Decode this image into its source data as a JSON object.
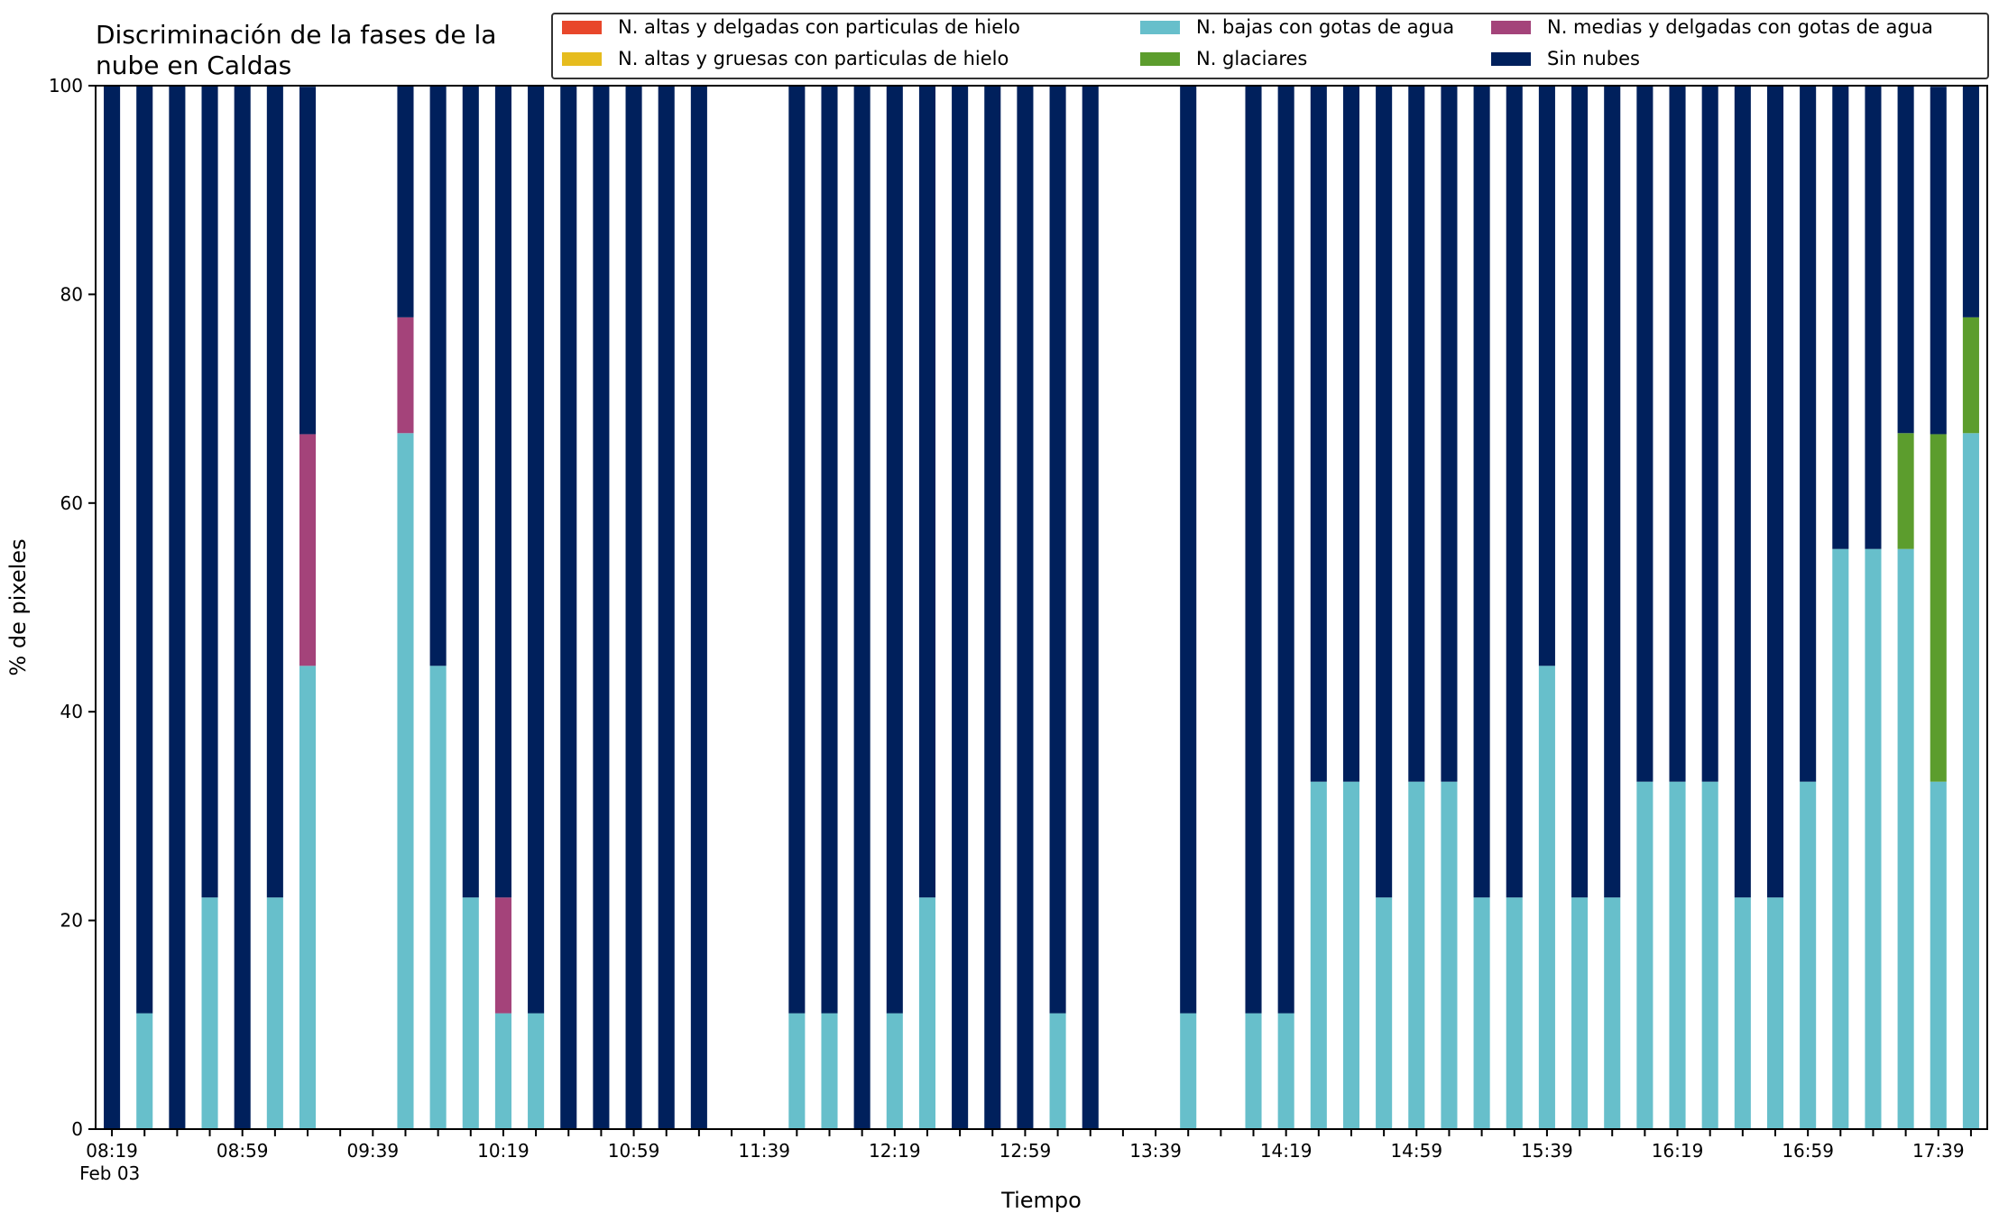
{
  "chart_data": {
    "type": "bar",
    "stacked": true,
    "title": "Discriminación de la fases de la nube en Caldas",
    "xlabel": "Tiempo",
    "ylabel": "% de pixeles",
    "ylim": [
      0,
      100
    ],
    "yticks": [
      0,
      20,
      40,
      60,
      80,
      100
    ],
    "grid": false,
    "legend_position": "top",
    "xticks_labels": [
      "08:19",
      "08:59",
      "09:39",
      "10:19",
      "10:59",
      "11:39",
      "12:19",
      "12:59",
      "13:39",
      "14:19",
      "14:59",
      "15:39",
      "16:19",
      "16:59",
      "17:39"
    ],
    "xticks_index": [
      0,
      4,
      8,
      12,
      16,
      20,
      24,
      28,
      32,
      36,
      40,
      44,
      48,
      52,
      56
    ],
    "date_label": "Feb 03",
    "slot_count": 58,
    "legend_order": [
      "N. altas y delgadas con particulas de hielo",
      "N. altas y gruesas con particulas de hielo",
      "N. bajas con gotas de agua",
      "N. glaciares",
      "N. medias y delgadas con gotas de agua",
      "Sin nubes"
    ],
    "stack_order": [
      "N. bajas con gotas de agua",
      "N. medias y delgadas con gotas de agua",
      "N. glaciares",
      "N. altas y delgadas con particulas de hielo",
      "N. altas y gruesas con particulas de hielo",
      "Sin nubes"
    ],
    "series": [
      {
        "name": "N. altas y delgadas con particulas de hielo",
        "color": "#e8472b",
        "values": [
          0,
          0,
          0,
          0,
          0,
          0,
          0,
          null,
          null,
          0,
          0,
          0,
          0,
          0,
          0,
          0,
          0,
          0,
          0,
          null,
          null,
          0,
          0,
          0,
          0,
          0,
          0,
          0,
          0,
          0,
          0,
          null,
          null,
          0,
          null,
          0,
          0,
          0,
          0,
          0,
          0,
          0,
          0,
          0,
          0,
          0,
          0,
          0,
          0,
          0,
          0,
          0,
          0,
          0,
          0,
          0,
          0,
          0
        ]
      },
      {
        "name": "N. altas y gruesas con particulas de hielo",
        "color": "#e6bc1e",
        "values": [
          0,
          0,
          0,
          0,
          0,
          0,
          0,
          null,
          null,
          0,
          0,
          0,
          0,
          0,
          0,
          0,
          0,
          0,
          0,
          null,
          null,
          0,
          0,
          0,
          0,
          0,
          0,
          0,
          0,
          0,
          0,
          null,
          null,
          0,
          null,
          0,
          0,
          0,
          0,
          0,
          0,
          0,
          0,
          0,
          0,
          0,
          0,
          0,
          0,
          0,
          0,
          0,
          0,
          0,
          0,
          0,
          0,
          0
        ]
      },
      {
        "name": "N. bajas con gotas de agua",
        "color": "#67bfcb",
        "values": [
          0,
          11.1,
          0,
          22.2,
          0,
          22.2,
          44.4,
          null,
          null,
          66.7,
          44.4,
          22.2,
          11.1,
          11.1,
          0,
          0,
          0,
          0,
          0,
          null,
          null,
          11.1,
          11.1,
          0,
          11.1,
          22.2,
          0,
          0,
          0,
          11.1,
          0,
          null,
          null,
          11.1,
          null,
          11.1,
          11.1,
          33.3,
          33.3,
          22.2,
          33.3,
          33.3,
          22.2,
          22.2,
          44.4,
          22.2,
          22.2,
          33.3,
          33.3,
          33.3,
          22.2,
          22.2,
          33.3,
          55.6,
          55.6,
          55.6,
          33.3,
          66.7
        ]
      },
      {
        "name": "N. glaciares",
        "color": "#5c9d2d",
        "values": [
          0,
          0,
          0,
          0,
          0,
          0,
          0,
          null,
          null,
          0,
          0,
          0,
          0,
          0,
          0,
          0,
          0,
          0,
          0,
          null,
          null,
          0,
          0,
          0,
          0,
          0,
          0,
          0,
          0,
          0,
          0,
          null,
          null,
          0,
          null,
          0,
          0,
          0,
          0,
          0,
          0,
          0,
          0,
          0,
          0,
          0,
          0,
          0,
          0,
          0,
          0,
          0,
          0,
          0,
          0,
          11.1,
          33.3,
          11.1
        ]
      },
      {
        "name": "N. medias y delgadas con gotas de agua",
        "color": "#a4437a",
        "values": [
          0,
          0,
          0,
          0,
          0,
          0,
          22.2,
          null,
          null,
          11.1,
          0,
          0,
          11.1,
          0,
          0,
          0,
          0,
          0,
          0,
          null,
          null,
          0,
          0,
          0,
          0,
          0,
          0,
          0,
          0,
          0,
          0,
          null,
          null,
          0,
          null,
          0,
          0,
          0,
          0,
          0,
          0,
          0,
          0,
          0,
          0,
          0,
          0,
          0,
          0,
          0,
          0,
          0,
          0,
          0,
          0,
          0,
          0,
          0
        ]
      },
      {
        "name": "Sin nubes",
        "color": "#00205c",
        "values": [
          100,
          88.9,
          100,
          77.8,
          100,
          77.8,
          33.3,
          null,
          null,
          22.2,
          55.6,
          77.8,
          77.8,
          88.9,
          100,
          100,
          100,
          100,
          100,
          null,
          null,
          88.9,
          88.9,
          100,
          88.9,
          77.8,
          100,
          100,
          100,
          88.9,
          100,
          null,
          null,
          88.9,
          null,
          88.9,
          88.9,
          66.7,
          66.7,
          77.8,
          66.7,
          66.7,
          77.8,
          77.8,
          55.6,
          77.8,
          77.8,
          66.7,
          66.7,
          66.7,
          77.8,
          77.8,
          66.7,
          44.4,
          44.4,
          33.3,
          33.3,
          22.2
        ]
      }
    ]
  }
}
